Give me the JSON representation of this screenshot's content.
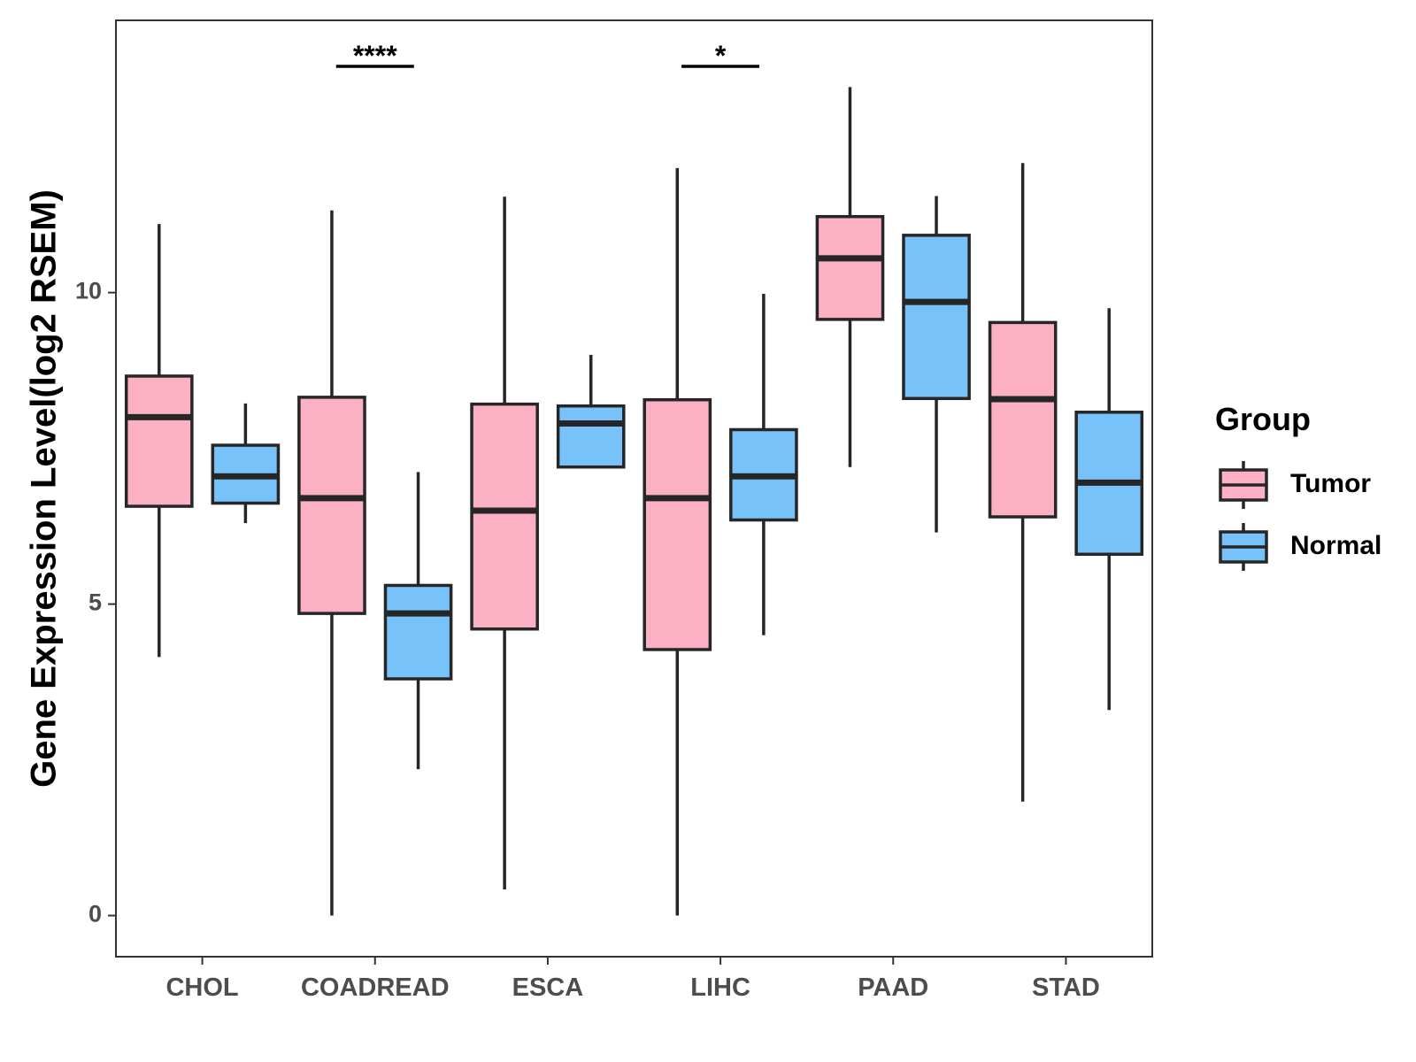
{
  "chart_data": {
    "type": "boxplot",
    "title": "",
    "xlabel": "",
    "ylabel": "Gene Expression Level(log2 RSEM)",
    "ylim": [
      -0.66,
      14.37
    ],
    "yticks": [
      0,
      5,
      10
    ],
    "ytick_labels": [
      "0",
      "5",
      "10"
    ],
    "categories": [
      "CHOL",
      "COADREAD",
      "ESCA",
      "LIHC",
      "PAAD",
      "STAD"
    ],
    "grid": false,
    "legend": {
      "title": "Group",
      "position": "right",
      "entries": [
        {
          "name": "Tumor",
          "color": "#FBB1C3"
        },
        {
          "name": "Normal",
          "color": "#77C2F8"
        }
      ]
    },
    "series": [
      {
        "name": "Tumor",
        "color": "#FBB1C3",
        "boxes": [
          {
            "category": "CHOL",
            "whisker_low": 4.15,
            "q1": 6.57,
            "median": 8.0,
            "q3": 8.66,
            "whisker_high": 11.1
          },
          {
            "category": "COADREAD",
            "whisker_low": 0.0,
            "q1": 4.85,
            "median": 6.7,
            "q3": 8.32,
            "whisker_high": 11.32
          },
          {
            "category": "ESCA",
            "whisker_low": 0.42,
            "q1": 4.6,
            "median": 6.5,
            "q3": 8.21,
            "whisker_high": 11.54
          },
          {
            "category": "LIHC",
            "whisker_low": 0.0,
            "q1": 4.27,
            "median": 6.7,
            "q3": 8.28,
            "whisker_high": 12.0
          },
          {
            "category": "PAAD",
            "whisker_low": 7.2,
            "q1": 9.57,
            "median": 10.55,
            "q3": 11.22,
            "whisker_high": 13.3
          },
          {
            "category": "STAD",
            "whisker_low": 1.83,
            "q1": 6.4,
            "median": 8.29,
            "q3": 9.52,
            "whisker_high": 12.08
          }
        ]
      },
      {
        "name": "Normal",
        "color": "#77C2F8",
        "boxes": [
          {
            "category": "CHOL",
            "whisker_low": 6.3,
            "q1": 6.62,
            "median": 7.05,
            "q3": 7.55,
            "whisker_high": 8.22
          },
          {
            "category": "COADREAD",
            "whisker_low": 2.35,
            "q1": 3.8,
            "median": 4.85,
            "q3": 5.3,
            "whisker_high": 7.12
          },
          {
            "category": "ESCA",
            "whisker_low": 7.2,
            "q1": 7.2,
            "median": 7.9,
            "q3": 8.18,
            "whisker_high": 9.0
          },
          {
            "category": "LIHC",
            "whisker_low": 4.5,
            "q1": 6.35,
            "median": 7.05,
            "q3": 7.8,
            "whisker_high": 9.98
          },
          {
            "category": "PAAD",
            "whisker_low": 6.15,
            "q1": 8.3,
            "median": 9.85,
            "q3": 10.92,
            "whisker_high": 11.55
          },
          {
            "category": "STAD",
            "whisker_low": 3.3,
            "q1": 5.8,
            "median": 6.95,
            "q3": 8.08,
            "whisker_high": 9.75
          }
        ]
      }
    ],
    "annotations": [
      {
        "category": "COADREAD",
        "label": "****"
      },
      {
        "category": "LIHC",
        "label": "*"
      }
    ]
  }
}
